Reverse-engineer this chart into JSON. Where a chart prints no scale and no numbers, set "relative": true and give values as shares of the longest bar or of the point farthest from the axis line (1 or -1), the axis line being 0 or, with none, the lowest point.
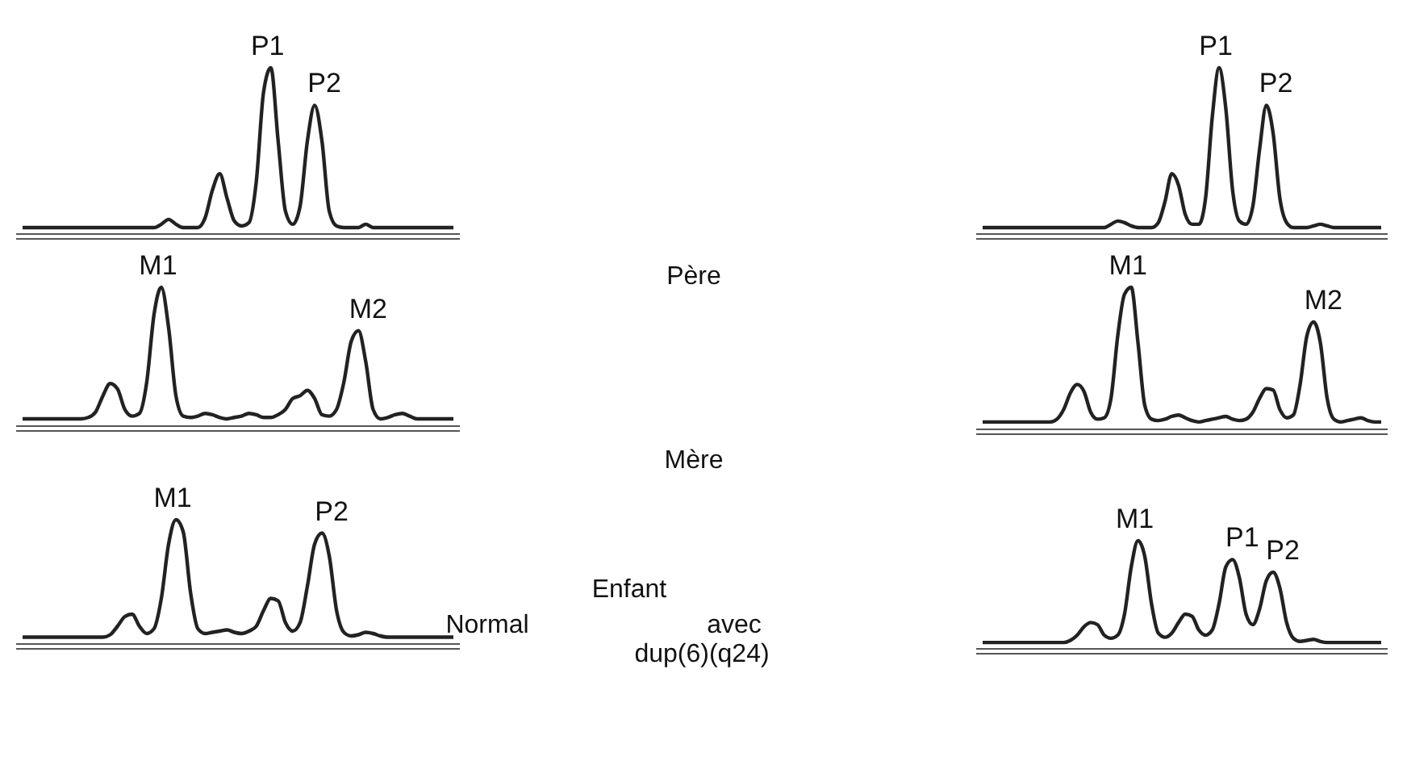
{
  "chart_data": [
    {
      "type": "line",
      "relative": true,
      "categories": [
        null,
        null,
        null,
        null,
        null,
        null,
        null,
        null,
        null,
        null,
        null,
        null,
        null,
        null,
        null,
        null,
        null,
        null,
        null,
        null,
        null,
        null,
        null,
        null,
        null,
        null,
        null,
        null,
        null,
        null,
        null,
        null,
        null,
        null,
        null,
        null,
        null,
        null,
        null,
        null,
        null,
        null,
        null,
        null,
        null,
        null,
        null,
        null,
        null,
        null,
        null,
        null,
        null,
        null,
        null,
        null,
        null,
        null,
        null,
        null
      ],
      "annotations": [
        "P1",
        "P2"
      ],
      "series": [
        {
          "color": "#222222",
          "values": [
            0.02,
            0.02,
            0.02,
            0.02,
            0.02,
            0.02,
            0.02,
            0.02,
            0.02,
            0.02,
            0.02,
            0.02,
            0.02,
            0.02,
            0.02,
            0.02,
            0.02,
            0.02,
            0.02,
            0.04,
            0.07,
            0.04,
            0.02,
            0.02,
            0.02,
            0.08,
            0.25,
            0.35,
            0.2,
            0.06,
            0.03,
            0.05,
            0.3,
            0.85,
            1.0,
            0.55,
            0.12,
            0.04,
            0.15,
            0.55,
            0.77,
            0.55,
            0.12,
            0.03,
            0.02,
            0.02,
            0.02,
            0.04,
            0.02,
            0.02,
            0.02,
            0.02,
            0.02,
            0.02,
            0.02,
            0.02,
            0.02,
            0.02,
            0.02,
            0.02
          ]
        }
      ]
    },
    {
      "type": "line",
      "relative": true,
      "categories": [
        null,
        null,
        null,
        null,
        null,
        null,
        null,
        null,
        null,
        null,
        null,
        null,
        null,
        null,
        null,
        null,
        null,
        null,
        null,
        null,
        null,
        null,
        null,
        null,
        null,
        null,
        null,
        null,
        null,
        null,
        null,
        null,
        null,
        null,
        null,
        null,
        null,
        null,
        null,
        null,
        null,
        null,
        null,
        null,
        null,
        null,
        null,
        null,
        null,
        null,
        null,
        null,
        null,
        null,
        null,
        null,
        null,
        null,
        null,
        null
      ],
      "annotations": [
        "P1",
        "P2"
      ],
      "series": [
        {
          "color": "#222222",
          "values": [
            0.02,
            0.02,
            0.02,
            0.02,
            0.02,
            0.02,
            0.02,
            0.02,
            0.02,
            0.02,
            0.02,
            0.02,
            0.02,
            0.02,
            0.02,
            0.02,
            0.02,
            0.02,
            0.02,
            0.04,
            0.06,
            0.05,
            0.03,
            0.02,
            0.02,
            0.02,
            0.05,
            0.18,
            0.35,
            0.28,
            0.1,
            0.04,
            0.04,
            0.2,
            0.7,
            1.0,
            0.75,
            0.25,
            0.06,
            0.04,
            0.15,
            0.5,
            0.77,
            0.6,
            0.2,
            0.05,
            0.02,
            0.02,
            0.02,
            0.03,
            0.04,
            0.03,
            0.02,
            0.02,
            0.02,
            0.02,
            0.02,
            0.02,
            0.02,
            0.02
          ]
        }
      ]
    },
    {
      "type": "line",
      "relative": true,
      "categories": [
        null,
        null,
        null,
        null,
        null,
        null,
        null,
        null,
        null,
        null,
        null,
        null,
        null,
        null,
        null,
        null,
        null,
        null,
        null,
        null,
        null,
        null,
        null,
        null,
        null,
        null,
        null,
        null,
        null,
        null,
        null,
        null,
        null,
        null,
        null,
        null,
        null,
        null,
        null,
        null,
        null,
        null,
        null,
        null,
        null,
        null,
        null,
        null,
        null,
        null,
        null,
        null,
        null,
        null,
        null,
        null,
        null,
        null,
        null,
        null
      ],
      "annotations": [
        "M1",
        "M2"
      ],
      "series": [
        {
          "color": "#222222",
          "values": [
            0.03,
            0.03,
            0.03,
            0.03,
            0.03,
            0.03,
            0.03,
            0.03,
            0.03,
            0.04,
            0.08,
            0.2,
            0.29,
            0.25,
            0.1,
            0.05,
            0.07,
            0.3,
            0.8,
            1.0,
            0.7,
            0.2,
            0.05,
            0.04,
            0.05,
            0.07,
            0.06,
            0.04,
            0.03,
            0.04,
            0.05,
            0.07,
            0.06,
            0.04,
            0.04,
            0.06,
            0.1,
            0.18,
            0.2,
            0.24,
            0.18,
            0.06,
            0.05,
            0.1,
            0.3,
            0.6,
            0.68,
            0.45,
            0.1,
            0.03,
            0.04,
            0.06,
            0.07,
            0.05,
            0.03,
            0.03,
            0.03,
            0.03,
            0.03,
            0.03
          ]
        }
      ]
    },
    {
      "type": "line",
      "relative": true,
      "categories": [
        null,
        null,
        null,
        null,
        null,
        null,
        null,
        null,
        null,
        null,
        null,
        null,
        null,
        null,
        null,
        null,
        null,
        null,
        null,
        null,
        null,
        null,
        null,
        null,
        null,
        null,
        null,
        null,
        null,
        null,
        null,
        null,
        null,
        null,
        null,
        null,
        null,
        null,
        null,
        null,
        null,
        null,
        null,
        null,
        null,
        null,
        null,
        null,
        null,
        null,
        null,
        null,
        null,
        null,
        null,
        null,
        null,
        null,
        null,
        null
      ],
      "annotations": [
        "M1",
        "M2"
      ],
      "series": [
        {
          "color": "#222222",
          "values": [
            0.03,
            0.03,
            0.03,
            0.03,
            0.03,
            0.03,
            0.03,
            0.03,
            0.03,
            0.03,
            0.03,
            0.05,
            0.12,
            0.24,
            0.3,
            0.25,
            0.1,
            0.05,
            0.06,
            0.2,
            0.65,
            0.95,
            1.0,
            0.6,
            0.15,
            0.05,
            0.04,
            0.05,
            0.07,
            0.08,
            0.06,
            0.04,
            0.03,
            0.04,
            0.05,
            0.06,
            0.07,
            0.05,
            0.04,
            0.05,
            0.1,
            0.2,
            0.27,
            0.26,
            0.12,
            0.06,
            0.08,
            0.3,
            0.65,
            0.75,
            0.6,
            0.2,
            0.05,
            0.03,
            0.04,
            0.05,
            0.06,
            0.04,
            0.03,
            0.03
          ]
        }
      ]
    },
    {
      "type": "line",
      "relative": true,
      "categories": [
        null,
        null,
        null,
        null,
        null,
        null,
        null,
        null,
        null,
        null,
        null,
        null,
        null,
        null,
        null,
        null,
        null,
        null,
        null,
        null,
        null,
        null,
        null,
        null,
        null,
        null,
        null,
        null,
        null,
        null,
        null,
        null,
        null,
        null,
        null,
        null,
        null,
        null,
        null,
        null,
        null,
        null,
        null,
        null,
        null,
        null,
        null,
        null,
        null,
        null,
        null,
        null,
        null,
        null,
        null,
        null,
        null,
        null,
        null,
        null
      ],
      "annotations": [
        "M1",
        "P2"
      ],
      "series": [
        {
          "color": "#222222",
          "values": [
            0.03,
            0.03,
            0.03,
            0.03,
            0.03,
            0.03,
            0.03,
            0.03,
            0.03,
            0.03,
            0.03,
            0.03,
            0.05,
            0.12,
            0.2,
            0.22,
            0.12,
            0.06,
            0.1,
            0.35,
            0.8,
            1.0,
            0.9,
            0.4,
            0.1,
            0.06,
            0.07,
            0.08,
            0.09,
            0.07,
            0.06,
            0.08,
            0.12,
            0.25,
            0.35,
            0.33,
            0.15,
            0.08,
            0.15,
            0.45,
            0.8,
            0.89,
            0.7,
            0.25,
            0.07,
            0.04,
            0.05,
            0.07,
            0.06,
            0.04,
            0.03,
            0.03,
            0.03,
            0.03,
            0.03,
            0.03,
            0.03,
            0.03,
            0.03,
            0.03
          ]
        }
      ]
    },
    {
      "type": "line",
      "relative": true,
      "categories": [
        null,
        null,
        null,
        null,
        null,
        null,
        null,
        null,
        null,
        null,
        null,
        null,
        null,
        null,
        null,
        null,
        null,
        null,
        null,
        null,
        null,
        null,
        null,
        null,
        null,
        null,
        null,
        null,
        null,
        null,
        null,
        null,
        null,
        null,
        null,
        null,
        null,
        null,
        null,
        null,
        null,
        null,
        null,
        null,
        null,
        null,
        null,
        null,
        null,
        null,
        null,
        null,
        null,
        null,
        null,
        null,
        null,
        null,
        null,
        null
      ],
      "annotations": [
        "M1",
        "P1",
        "P2"
      ],
      "series": [
        {
          "color": "#222222",
          "values": [
            0.03,
            0.03,
            0.03,
            0.03,
            0.03,
            0.03,
            0.03,
            0.03,
            0.03,
            0.03,
            0.03,
            0.03,
            0.03,
            0.05,
            0.1,
            0.18,
            0.22,
            0.2,
            0.1,
            0.07,
            0.1,
            0.3,
            0.75,
            1.0,
            0.85,
            0.4,
            0.12,
            0.08,
            0.12,
            0.22,
            0.3,
            0.28,
            0.15,
            0.1,
            0.15,
            0.4,
            0.75,
            0.82,
            0.65,
            0.3,
            0.2,
            0.35,
            0.62,
            0.7,
            0.55,
            0.22,
            0.07,
            0.04,
            0.05,
            0.06,
            0.04,
            0.03,
            0.03,
            0.03,
            0.03,
            0.03,
            0.03,
            0.03,
            0.03,
            0.03
          ]
        }
      ]
    },
    {
      "type": "other",
      "annotations": [
        "Père",
        "Mère",
        "Enfant",
        "Normal",
        "avec",
        "dup(6)(q24)"
      ]
    }
  ]
}
